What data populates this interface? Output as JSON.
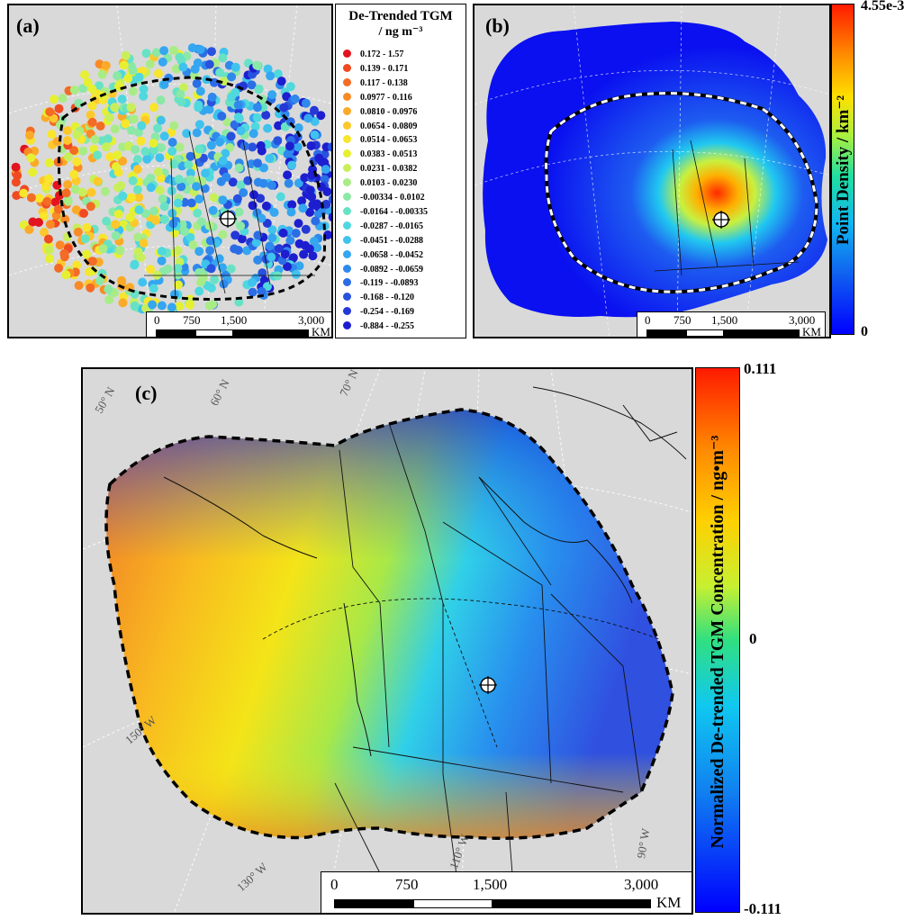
{
  "panel_a": {
    "label": "(a)",
    "legend": {
      "title_line1": "De-Trended TGM",
      "title_line2": "/ ng m⁻³",
      "classes": [
        {
          "range": "0.172 - 1.57",
          "color": "#e3141e"
        },
        {
          "range": "0.139 - 0.171",
          "color": "#f04a22"
        },
        {
          "range": "0.117 - 0.138",
          "color": "#f36b24"
        },
        {
          "range": "0.0977 - 0.116",
          "color": "#f98a26"
        },
        {
          "range": "0.0810 - 0.0976",
          "color": "#fbaa28"
        },
        {
          "range": "0.0654 - 0.0809",
          "color": "#fdc82b"
        },
        {
          "range": "0.0514 - 0.0653",
          "color": "#f8e52c"
        },
        {
          "range": "0.0383 - 0.0513",
          "color": "#e6f031"
        },
        {
          "range": "0.0231 - 0.0382",
          "color": "#c8ef5a"
        },
        {
          "range": "0.0103 - 0.0230",
          "color": "#a9ec86"
        },
        {
          "range": "-0.00334 - 0.0102",
          "color": "#8be8a6"
        },
        {
          "range": "-0.0164 - -0.00335",
          "color": "#68e2c4"
        },
        {
          "range": "-0.0287 - -0.0165",
          "color": "#4fd8de"
        },
        {
          "range": "-0.0451 - -0.0288",
          "color": "#3fc2ee"
        },
        {
          "range": "-0.0658 - -0.0452",
          "color": "#35a6f0"
        },
        {
          "range": "-0.0892 - -0.0659",
          "color": "#2f89ec"
        },
        {
          "range": "-0.119 - -0.0893",
          "color": "#2b6de6"
        },
        {
          "range": "-0.168 - -0.120",
          "color": "#2852de"
        },
        {
          "range": "-0.254 - -0.169",
          "color": "#2438d6"
        },
        {
          "range": "-0.884 - -0.255",
          "color": "#1d1ecf"
        }
      ]
    },
    "scale": {
      "t0": "0",
      "t1": "750",
      "t2": "1,500",
      "t3": "3,000",
      "unit": "KM"
    }
  },
  "panel_b": {
    "label": "(b)",
    "colorbar": {
      "max": "4.55e-3",
      "min": "0",
      "title": "Point Density / km⁻²",
      "top_color": "#ff2200",
      "bottom_color": "#0000ff"
    },
    "scale": {
      "t0": "0",
      "t1": "750",
      "t2": "1,500",
      "t3": "3,000",
      "unit": "KM"
    }
  },
  "panel_c": {
    "label": "(c)",
    "colorbar": {
      "max": "0.111",
      "mid": "0",
      "min": "-0.111",
      "title": "Normalized De-trended TGM Concentration / ng•m⁻³"
    },
    "graticule": {
      "lat50": "50° N",
      "lat60": "60° N",
      "lat70": "70° N",
      "lon150": "150° W",
      "lon130": "130° W",
      "lon110": "110° W",
      "lon90": "90° W"
    },
    "scale": {
      "t0": "0",
      "t1": "750",
      "t2": "1,500",
      "t3": "3,000",
      "unit": "KM"
    }
  }
}
